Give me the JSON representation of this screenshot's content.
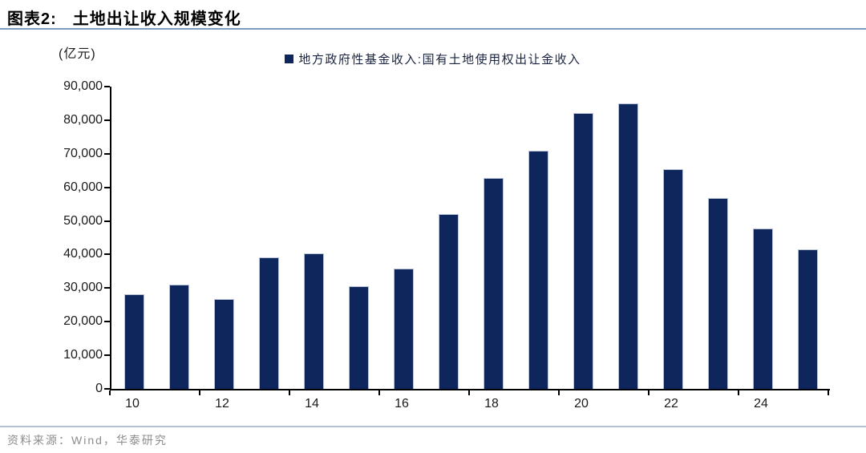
{
  "header": {
    "figure_label": "图表2:",
    "title": "土地出让收入规模变化",
    "rule_color": "#7E9CC3"
  },
  "chart": {
    "unit_label": "(亿元)",
    "bar_color": "#0F265C",
    "bar_edge_color": "#B9C3D8",
    "axis_color": "#000000",
    "legend": {
      "marker_color": "#0F265C",
      "label": "地方政府性基金收入:国有土地使用权出让金收入"
    }
  },
  "chart_data": {
    "type": "bar",
    "title": "土地出让收入规模变化",
    "unit": "亿元",
    "categories": [
      "10",
      "11",
      "12",
      "13",
      "14",
      "15",
      "16",
      "17",
      "18",
      "19",
      "20",
      "21",
      "22",
      "23",
      "24",
      "25"
    ],
    "series": [
      {
        "name": "地方政府性基金收入:国有土地使用权出让金收入",
        "values": [
          28200,
          31000,
          26800,
          39200,
          40400,
          30500,
          35800,
          52000,
          62800,
          71000,
          82200,
          85100,
          65300,
          56800,
          47700,
          41500
        ]
      }
    ],
    "x_tick_labels": [
      "10",
      "12",
      "14",
      "16",
      "18",
      "20",
      "22",
      "24"
    ],
    "y_tick_labels": [
      "0",
      "10,000",
      "20,000",
      "30,000",
      "40,000",
      "50,000",
      "60,000",
      "70,000",
      "80,000",
      "90,000"
    ],
    "ylim": [
      0,
      90000
    ],
    "y_tick_step": 10000,
    "grid": false,
    "legend_position": "top"
  },
  "footer": {
    "source_text": "资料来源：Wind，华泰研究",
    "rule_color": "#B3C0D4",
    "text_color": "#8C8C8C"
  }
}
